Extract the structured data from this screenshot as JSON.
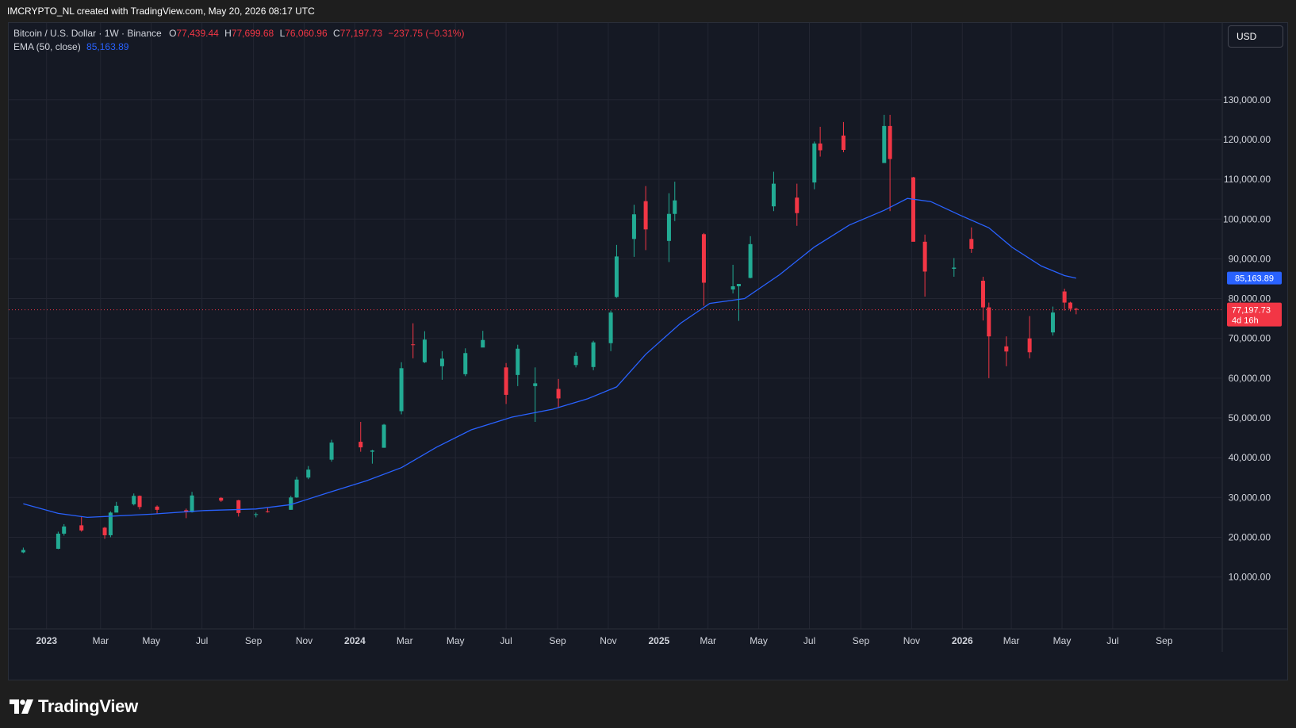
{
  "header": {
    "attribution": "IMCRYPTO_NL created with TradingView.com, May 20, 2026 08:17 UTC"
  },
  "legend": {
    "symbol": "Bitcoin / U.S. Dollar · 1W · Binance",
    "open_key": "O",
    "open": "77,439.44",
    "high_key": "H",
    "high": "77,699.68",
    "low_key": "L",
    "low": "76,060.96",
    "close_key": "C",
    "close": "77,197.73",
    "change": "−237.75 (−0.31%)",
    "ema_label": "EMA (50, close)",
    "ema_value": "85,163.89"
  },
  "currency_button": "USD",
  "price_labels": {
    "ema": "85,163.89",
    "last": "77,197.73",
    "countdown": "4d 16h"
  },
  "footer": {
    "brand": "TradingView"
  },
  "colors": {
    "up": "#22ab94",
    "down": "#f23645",
    "ema": "#2962ff",
    "background": "#151924",
    "grid": "#232632"
  },
  "chart_data": {
    "type": "candlestick",
    "title": "Bitcoin / U.S. Dollar · 1W · Binance",
    "interval": "1W",
    "ylim": [
      0,
      140000
    ],
    "y_ticks": [
      10000,
      20000,
      30000,
      40000,
      50000,
      60000,
      70000,
      80000,
      90000,
      100000,
      110000,
      120000,
      130000
    ],
    "y_tick_labels": [
      "10,000.00",
      "20,000.00",
      "30,000.00",
      "40,000.00",
      "50,000.00",
      "60,000.00",
      "70,000.00",
      "80,000.00",
      "90,000.00",
      "100,000.00",
      "110,000.00",
      "120,000.00",
      "130,000.00"
    ],
    "x_ticks": [
      "2022-12-26",
      "2023-03-01",
      "2023-05-01",
      "2023-07-01",
      "2023-09-01",
      "2023-11-01",
      "2024-01-01",
      "2024-03-01",
      "2024-05-01",
      "2024-07-01",
      "2024-09-01",
      "2024-11-01",
      "2025-01-01",
      "2025-03-01",
      "2025-05-01",
      "2025-07-01",
      "2025-09-01",
      "2025-11-01",
      "2026-01-01",
      "2026-03-01",
      "2026-05-01",
      "2026-07-01",
      "2026-09-01"
    ],
    "x_tick_labels": [
      "2023",
      "Mar",
      "May",
      "Jul",
      "Sep",
      "Nov",
      "2024",
      "Mar",
      "May",
      "Jul",
      "Sep",
      "Nov",
      "2025",
      "Mar",
      "May",
      "Jul",
      "Sep",
      "Nov",
      "2026",
      "Mar",
      "May",
      "Jul",
      "Sep"
    ],
    "last_price": 77197.73,
    "ema_last": 85163.89,
    "series": [
      {
        "name": "BTCUSD",
        "kind": "ohlc",
        "points": [
          [
            "2022-11-28",
            16200,
            17400,
            16000,
            16800
          ],
          [
            "2023-01-09",
            17100,
            21400,
            17000,
            20900
          ],
          [
            "2023-01-16",
            20900,
            23300,
            20400,
            22700
          ],
          [
            "2023-02-06",
            23000,
            25200,
            21400,
            21700
          ],
          [
            "2023-03-06",
            22400,
            22600,
            19600,
            20500
          ],
          [
            "2023-03-13",
            20500,
            26500,
            20000,
            26200
          ],
          [
            "2023-03-20",
            26200,
            28900,
            26500,
            27900
          ],
          [
            "2023-04-10",
            28300,
            31000,
            28000,
            30400
          ],
          [
            "2023-04-17",
            30400,
            30500,
            27000,
            27600
          ],
          [
            "2023-05-08",
            27700,
            28000,
            25800,
            26900
          ],
          [
            "2023-06-12",
            26800,
            27200,
            24800,
            26300
          ],
          [
            "2023-06-19",
            26300,
            31400,
            26200,
            30500
          ],
          [
            "2023-07-24",
            29900,
            30100,
            28900,
            29200
          ],
          [
            "2023-08-14",
            29300,
            29400,
            25200,
            26100
          ],
          [
            "2023-09-04",
            25800,
            26200,
            25000,
            25800
          ],
          [
            "2023-09-18",
            26500,
            27500,
            26200,
            26300
          ],
          [
            "2023-10-16",
            26900,
            30400,
            26900,
            30000
          ],
          [
            "2023-10-23",
            30000,
            35200,
            29900,
            34500
          ],
          [
            "2023-11-06",
            35000,
            37900,
            34600,
            37000
          ],
          [
            "2023-12-04",
            39500,
            44500,
            39000,
            43800
          ],
          [
            "2024-01-08",
            44000,
            49000,
            41500,
            42600
          ],
          [
            "2024-01-22",
            41500,
            42000,
            38500,
            41800
          ],
          [
            "2024-02-05",
            42500,
            48500,
            42500,
            48300
          ],
          [
            "2024-02-26",
            51700,
            64000,
            50900,
            62500
          ],
          [
            "2024-03-11",
            68500,
            73800,
            65000,
            68400
          ],
          [
            "2024-03-25",
            64000,
            71800,
            63800,
            69700
          ],
          [
            "2024-04-15",
            63000,
            66800,
            59600,
            64900
          ],
          [
            "2024-05-13",
            61000,
            67500,
            60500,
            66300
          ],
          [
            "2024-06-03",
            67700,
            71900,
            68000,
            69600
          ],
          [
            "2024-07-01",
            62700,
            63800,
            53500,
            55800
          ],
          [
            "2024-07-15",
            60800,
            68400,
            58000,
            67400
          ],
          [
            "2024-08-05",
            58000,
            62700,
            49000,
            58700
          ],
          [
            "2024-09-02",
            57300,
            59800,
            52550,
            54900
          ],
          [
            "2024-09-23",
            63300,
            66500,
            62700,
            65600
          ],
          [
            "2024-10-14",
            62800,
            69400,
            62000,
            69000
          ],
          [
            "2024-11-04",
            68800,
            77000,
            66800,
            76500
          ],
          [
            "2024-11-11",
            80400,
            93500,
            80200,
            90600
          ],
          [
            "2024-12-02",
            95000,
            103600,
            90500,
            101200
          ],
          [
            "2024-12-16",
            104500,
            108300,
            92200,
            97400
          ],
          [
            "2025-01-13",
            94500,
            106500,
            89200,
            101300
          ],
          [
            "2025-01-20",
            101300,
            109400,
            99500,
            104700
          ],
          [
            "2025-02-24",
            96200,
            96500,
            78200,
            84000
          ],
          [
            "2025-03-31",
            82300,
            88500,
            81300,
            83100
          ],
          [
            "2025-04-07",
            83100,
            83700,
            74400,
            83700
          ],
          [
            "2025-04-21",
            85200,
            95700,
            85100,
            93700
          ],
          [
            "2025-05-19",
            103200,
            111900,
            102000,
            108900
          ],
          [
            "2025-06-16",
            105400,
            108900,
            98300,
            101500
          ],
          [
            "2025-07-07",
            109200,
            119500,
            107500,
            119000
          ],
          [
            "2025-07-14",
            119000,
            123200,
            115700,
            117300
          ],
          [
            "2025-08-11",
            121000,
            124400,
            116800,
            117400
          ],
          [
            "2025-09-29",
            114100,
            126200,
            114100,
            123400
          ],
          [
            "2025-10-06",
            123400,
            126200,
            102000,
            115100
          ],
          [
            "2025-11-03",
            110500,
            110600,
            98900,
            94300
          ],
          [
            "2025-11-17",
            94300,
            96100,
            80500,
            86800
          ],
          [
            "2025-12-22",
            87500,
            90200,
            85500,
            87800
          ],
          [
            "2026-01-12",
            95000,
            97900,
            91500,
            92500
          ],
          [
            "2026-01-26",
            84500,
            85500,
            74500,
            77800
          ],
          [
            "2026-02-02",
            77800,
            79000,
            60000,
            70500
          ],
          [
            "2026-02-23",
            68000,
            70500,
            63000,
            66700
          ],
          [
            "2026-03-23",
            70000,
            75600,
            65000,
            66500
          ],
          [
            "2026-04-20",
            71500,
            78000,
            70700,
            76500
          ],
          [
            "2026-05-04",
            81800,
            82500,
            77000,
            79000
          ],
          [
            "2026-05-11",
            79000,
            79200,
            76800,
            77439.44
          ],
          [
            "2026-05-18",
            77439.44,
            77699.68,
            76060.96,
            77197.73
          ]
        ]
      },
      {
        "name": "EMA (50, close)",
        "kind": "line",
        "points": [
          [
            "2022-11-28",
            28400
          ],
          [
            "2023-01-09",
            26000
          ],
          [
            "2023-02-13",
            25000
          ],
          [
            "2023-05-01",
            25800
          ],
          [
            "2023-07-03",
            26700
          ],
          [
            "2023-09-04",
            27100
          ],
          [
            "2023-10-16",
            28200
          ],
          [
            "2023-11-27",
            31000
          ],
          [
            "2024-01-15",
            34200
          ],
          [
            "2024-02-26",
            37500
          ],
          [
            "2024-04-08",
            42600
          ],
          [
            "2024-05-20",
            47000
          ],
          [
            "2024-07-08",
            50200
          ],
          [
            "2024-08-26",
            52200
          ],
          [
            "2024-10-07",
            54800
          ],
          [
            "2024-11-11",
            57800
          ],
          [
            "2024-12-16",
            66000
          ],
          [
            "2025-01-27",
            73800
          ],
          [
            "2025-03-03",
            78800
          ],
          [
            "2025-04-14",
            80000
          ],
          [
            "2025-05-26",
            86000
          ],
          [
            "2025-07-07",
            93000
          ],
          [
            "2025-08-18",
            98500
          ],
          [
            "2025-09-29",
            102200
          ],
          [
            "2025-10-27",
            105200
          ],
          [
            "2025-11-24",
            104400
          ],
          [
            "2025-12-29",
            101000
          ],
          [
            "2026-02-02",
            97800
          ],
          [
            "2026-03-02",
            92900
          ],
          [
            "2026-04-06",
            88200
          ],
          [
            "2026-05-04",
            85800
          ],
          [
            "2026-05-18",
            85163.89
          ]
        ]
      }
    ]
  }
}
